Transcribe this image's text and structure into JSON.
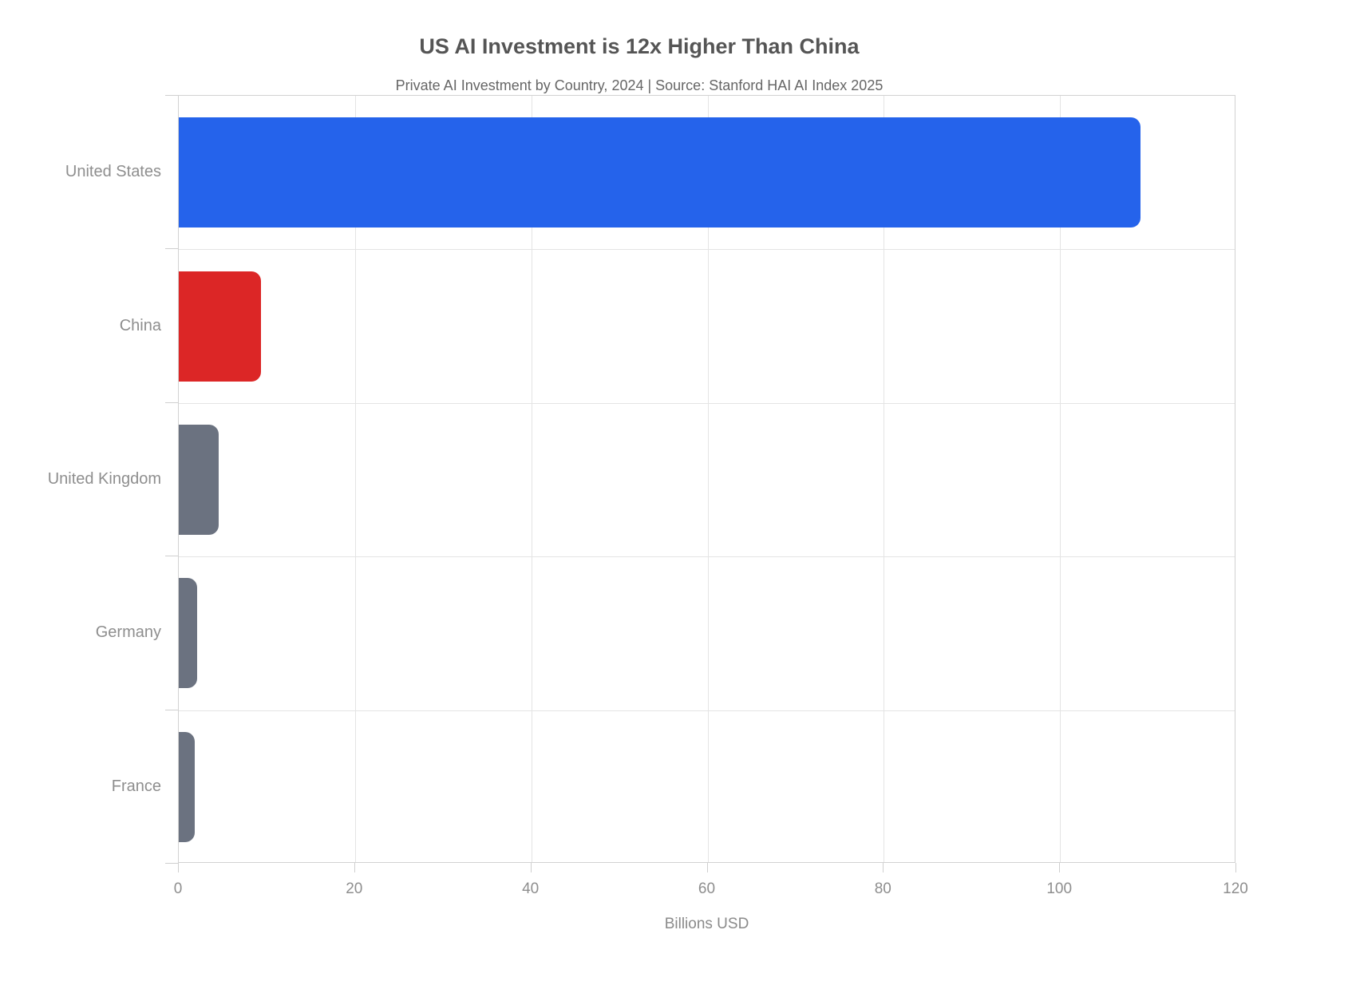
{
  "chart_data": {
    "type": "bar",
    "orientation": "horizontal",
    "title": "US AI Investment is 12x Higher Than China",
    "subtitle": "Private AI Investment by Country, 2024 | Source: Stanford HAI AI Index 2025",
    "categories": [
      "United States",
      "China",
      "United Kingdom",
      "Germany",
      "France"
    ],
    "values": [
      109.1,
      9.3,
      4.5,
      2.1,
      1.8
    ],
    "bar_colors": [
      "#2563eb",
      "#dc2626",
      "#6b7280",
      "#6b7280",
      "#6b7280"
    ],
    "xlabel": "Billions USD",
    "xlim": [
      0,
      120
    ],
    "x_ticks": [
      0,
      20,
      40,
      60,
      80,
      100,
      120
    ],
    "grid": true,
    "legend": false
  },
  "colors": {
    "us_bar": "#2563eb",
    "china_bar": "#dc2626",
    "other_bar": "#6b7280",
    "gridline": "#e4e4e4",
    "axis_line": "#d2d2d2",
    "title_text": "#555555",
    "subtitle_text": "#666666",
    "axis_text": "#8e8e8e"
  }
}
